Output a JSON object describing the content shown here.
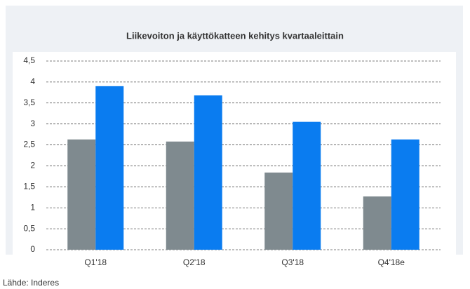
{
  "chart_data": {
    "type": "bar",
    "title": "Liikevoiton ja käyttökatteen kehitys kvartaaleittain",
    "source": "Lähde: Inderes",
    "categories": [
      "Q1'18",
      "Q2'18",
      "Q3'18",
      "Q4'18e"
    ],
    "series": [
      {
        "color": "#7f8a8f",
        "values": [
          2.63,
          2.58,
          1.84,
          1.27
        ]
      },
      {
        "color": "#0a7cf0",
        "values": [
          3.9,
          3.68,
          3.05,
          2.63
        ]
      }
    ],
    "ylim": [
      0,
      4.5
    ],
    "yticks": [
      0,
      {
        "value": 0.5,
        "label": "0,5"
      },
      1,
      {
        "value": 1.5,
        "label": "1,5"
      },
      2,
      {
        "value": 2.5,
        "label": "2,5"
      },
      3,
      {
        "value": 3.5,
        "label": "3,5"
      },
      4,
      {
        "value": 4.5,
        "label": "4,5"
      }
    ],
    "grid": true
  }
}
